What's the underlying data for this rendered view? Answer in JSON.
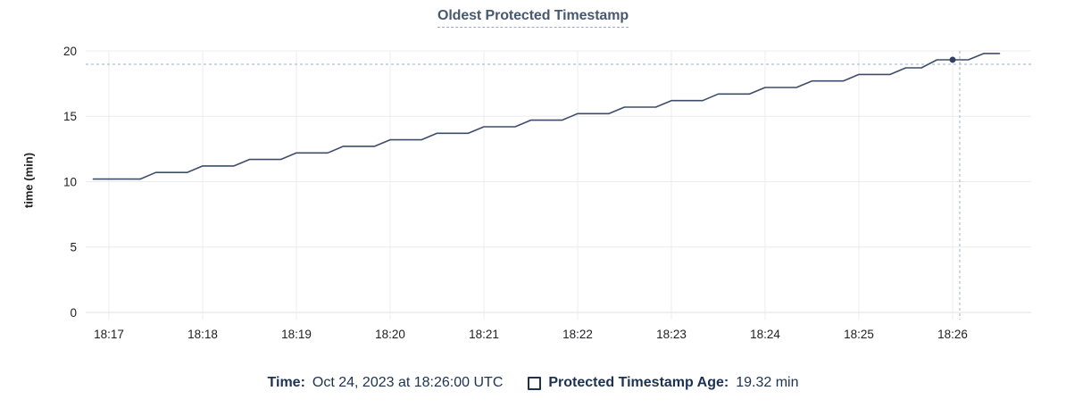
{
  "chart_data": {
    "type": "line",
    "title": "Oldest Protected Timestamp",
    "xlabel": "",
    "ylabel": "time (min)",
    "ylim": [
      0,
      20
    ],
    "y_ticks": [
      0,
      5,
      10,
      15,
      20
    ],
    "x_ticks": [
      "18:17",
      "18:18",
      "18:19",
      "18:20",
      "18:21",
      "18:22",
      "18:23",
      "18:24",
      "18:25",
      "18:26"
    ],
    "grid": true,
    "legend_position": "bottom",
    "series": [
      {
        "name": "Protected Timestamp Age",
        "color": "#3e4d6b",
        "points": [
          [
            "18:16:50",
            10.2
          ],
          [
            "18:17:20",
            10.2
          ],
          [
            "18:17:30",
            10.7
          ],
          [
            "18:17:50",
            10.7
          ],
          [
            "18:18:00",
            11.2
          ],
          [
            "18:18:20",
            11.2
          ],
          [
            "18:18:30",
            11.7
          ],
          [
            "18:18:50",
            11.7
          ],
          [
            "18:19:00",
            12.2
          ],
          [
            "18:19:20",
            12.2
          ],
          [
            "18:19:30",
            12.7
          ],
          [
            "18:19:50",
            12.7
          ],
          [
            "18:20:00",
            13.2
          ],
          [
            "18:20:20",
            13.2
          ],
          [
            "18:20:30",
            13.7
          ],
          [
            "18:20:50",
            13.7
          ],
          [
            "18:21:00",
            14.2
          ],
          [
            "18:21:20",
            14.2
          ],
          [
            "18:21:30",
            14.7
          ],
          [
            "18:21:50",
            14.7
          ],
          [
            "18:22:00",
            15.2
          ],
          [
            "18:22:20",
            15.2
          ],
          [
            "18:22:30",
            15.7
          ],
          [
            "18:22:50",
            15.7
          ],
          [
            "18:23:00",
            16.2
          ],
          [
            "18:23:20",
            16.2
          ],
          [
            "18:23:30",
            16.7
          ],
          [
            "18:23:50",
            16.7
          ],
          [
            "18:24:00",
            17.2
          ],
          [
            "18:24:20",
            17.2
          ],
          [
            "18:24:30",
            17.7
          ],
          [
            "18:24:50",
            17.7
          ],
          [
            "18:25:00",
            18.2
          ],
          [
            "18:25:20",
            18.2
          ],
          [
            "18:25:30",
            18.7
          ],
          [
            "18:25:40",
            18.7
          ],
          [
            "18:25:50",
            19.32
          ],
          [
            "18:26:10",
            19.32
          ],
          [
            "18:26:20",
            19.8
          ],
          [
            "18:26:30",
            19.8
          ]
        ]
      }
    ],
    "hover_point": {
      "time": "18:26:00",
      "value": 19.32
    }
  },
  "footer": {
    "time_label": "Time:",
    "time_value": "Oct 24, 2023 at 18:26:00 UTC",
    "series_label": "Protected Timestamp Age:",
    "series_value": "19.32 min"
  },
  "colors": {
    "title_text": "#475872",
    "legend_text": "#1c3254",
    "axis_text": "#202124",
    "line": "#3e4d6b",
    "dot": "#32415f",
    "grid": "#ececec",
    "axis_line": "#e0e0e0",
    "crosshair": "#9fb1c4",
    "title_underline": "#9cabc2"
  }
}
